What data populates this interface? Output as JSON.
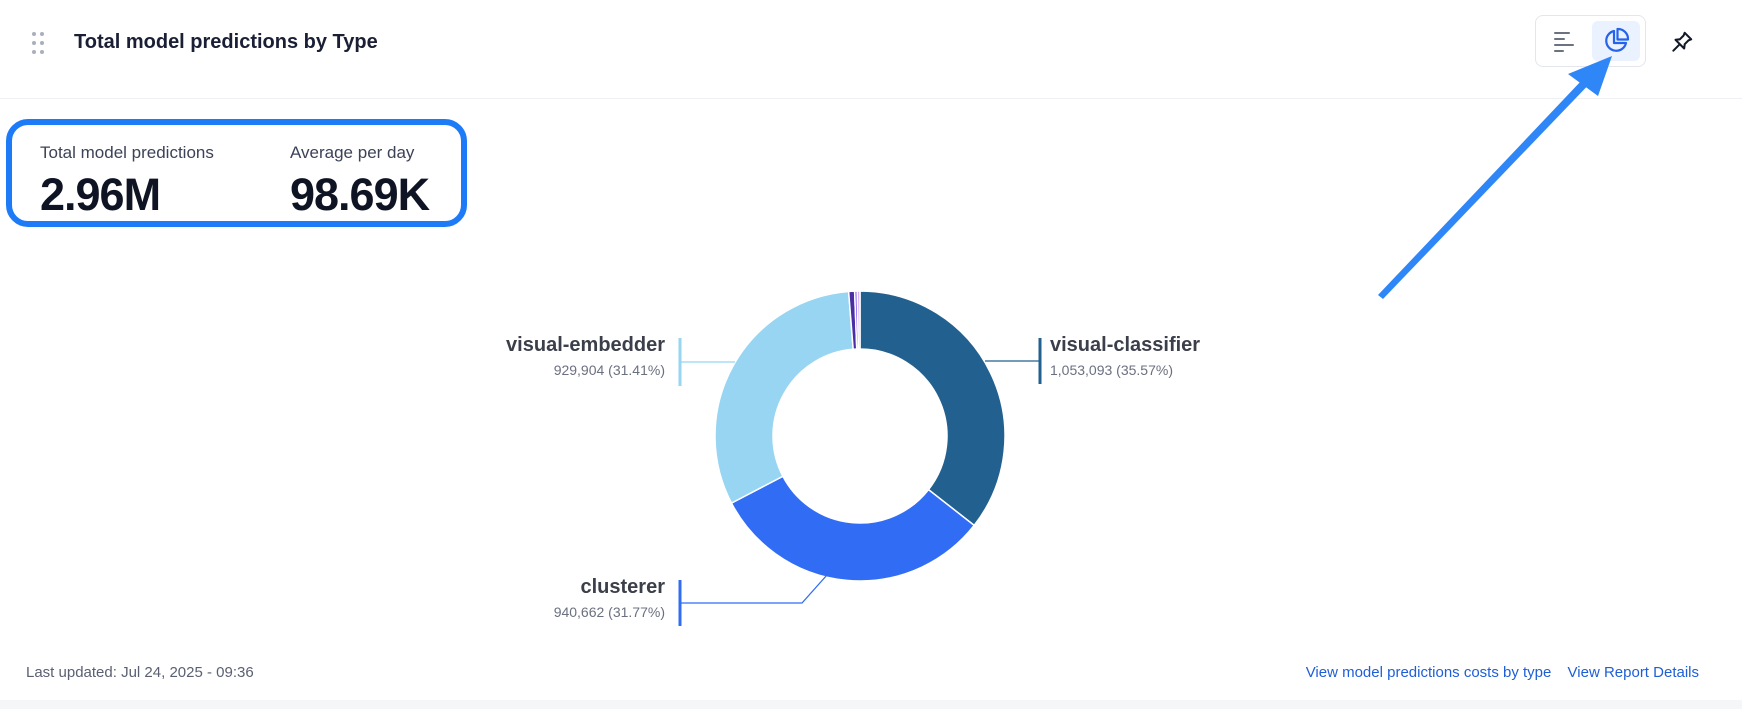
{
  "header": {
    "title": "Total model predictions by Type",
    "icons": [
      "drag-handle-icon",
      "bar-chart-icon",
      "pie-chart-icon",
      "pin-icon"
    ],
    "active_view": "pie"
  },
  "kpis": [
    {
      "label": "Total model predictions",
      "value": "2.96M"
    },
    {
      "label": "Average per day",
      "value": "98.69K"
    }
  ],
  "chart_data": {
    "type": "pie",
    "slices": [
      {
        "label": "visual-classifier",
        "value": 1053093,
        "value_label": "1,053,093 (35.57%)",
        "percent": 35.57,
        "color": "#22608f"
      },
      {
        "label": "clusterer",
        "value": 940662,
        "value_label": "940,662 (31.77%)",
        "percent": 31.77,
        "color": "#316cf4"
      },
      {
        "label": "visual-embedder",
        "value": 929904,
        "value_label": "929,904 (31.41%)",
        "percent": 31.41,
        "color": "#97d5f2"
      },
      {
        "label": "",
        "value": 19500,
        "value_label": "",
        "percent": 0.66,
        "color": "#4a2ea3"
      },
      {
        "label": "",
        "value": 8800,
        "value_label": "",
        "percent": 0.3,
        "color": "#8b5cf6"
      },
      {
        "label": "",
        "value": 8700,
        "value_label": "",
        "percent": 0.29,
        "color": "#d6a6ea"
      }
    ]
  },
  "footer": {
    "last_updated": "Last updated: Jul 24, 2025 - 09:36",
    "links": [
      "View model predictions costs by type",
      "View Report Details"
    ]
  },
  "colors": {
    "accent": "#1e7bf7",
    "link": "#1f5fd6",
    "annotation_arrow": "#2f86f6"
  }
}
